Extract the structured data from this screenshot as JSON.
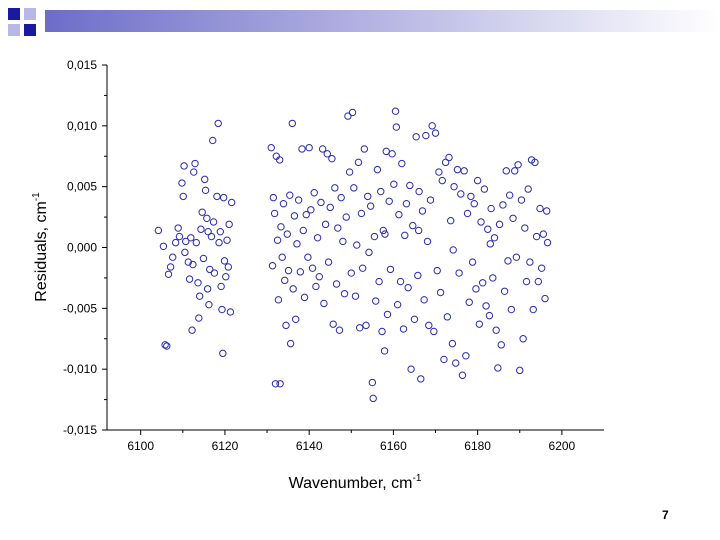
{
  "slide": {
    "page_number": "7",
    "banner_colors": [
      "#1a1a9e",
      "#6d6dc8",
      "#b8b8e6"
    ]
  },
  "chart_data": {
    "type": "scatter",
    "title": "",
    "xlabel": "Wavenumber, cm",
    "xlabel_sup": "-1",
    "ylabel": "Residuals, cm",
    "ylabel_sup": "-1",
    "xlim": [
      6092,
      6210
    ],
    "ylim": [
      -0.015,
      0.015
    ],
    "x_ticks": [
      6100,
      6120,
      6140,
      6160,
      6180,
      6200
    ],
    "x_tick_labels": [
      "6100",
      "6120",
      "6140",
      "6160",
      "6180",
      "6200"
    ],
    "y_ticks": [
      0.015,
      0.01,
      0.005,
      0.0,
      -0.005,
      -0.01,
      -0.015
    ],
    "y_tick_labels": [
      "0,015",
      "0,010",
      "0,005",
      "0,000",
      "-0,005",
      "-0,010",
      "-0,015"
    ],
    "grid": false,
    "marker": "open-circle",
    "marker_color": "#2a2ab0",
    "series": [
      {
        "points": [
          [
            6104.2,
            0.0014
          ],
          [
            6105.4,
            0.0001
          ],
          [
            6105.8,
            -0.008
          ],
          [
            6106.2,
            -0.0081
          ],
          [
            6106.6,
            -0.0022
          ],
          [
            6107.1,
            -0.0016
          ],
          [
            6107.6,
            -0.0008
          ],
          [
            6108.3,
            0.0004
          ],
          [
            6108.9,
            0.0016
          ],
          [
            6109.2,
            0.0009
          ],
          [
            6109.8,
            0.0053
          ],
          [
            6110.3,
            0.0067
          ],
          [
            6110.1,
            0.0042
          ],
          [
            6110.7,
            0.0005
          ],
          [
            6111.3,
            -0.0012
          ],
          [
            6111.6,
            -0.0026
          ],
          [
            6111.9,
            0.0008
          ],
          [
            6112.2,
            -0.0068
          ],
          [
            6112.6,
            0.0062
          ],
          [
            6112.9,
            0.0069
          ],
          [
            6113.2,
            0.0004
          ],
          [
            6113.6,
            -0.0029
          ],
          [
            6113.8,
            -0.0058
          ],
          [
            6114.3,
            0.0015
          ],
          [
            6114.6,
            0.0029
          ],
          [
            6114.9,
            -0.0009
          ],
          [
            6115.2,
            0.0056
          ],
          [
            6115.4,
            0.0047
          ],
          [
            6115.7,
            0.0024
          ],
          [
            6115.9,
            -0.0034
          ],
          [
            6116.2,
            -0.0047
          ],
          [
            6116.4,
            -0.0018
          ],
          [
            6116.8,
            0.0009
          ],
          [
            6117.1,
            0.0088
          ],
          [
            6117.3,
            0.0021
          ],
          [
            6117.5,
            -0.0021
          ],
          [
            6118.1,
            0.0042
          ],
          [
            6118.4,
            0.0102
          ],
          [
            6118.6,
            0.0004
          ],
          [
            6118.9,
            0.0013
          ],
          [
            6119.1,
            -0.0032
          ],
          [
            6119.3,
            -0.0051
          ],
          [
            6119.5,
            -0.0087
          ],
          [
            6119.7,
            0.0041
          ],
          [
            6119.9,
            -0.0011
          ],
          [
            6120.2,
            -0.0024
          ],
          [
            6120.5,
            0.0006
          ],
          [
            6120.8,
            -0.0016
          ],
          [
            6121.0,
            0.0019
          ],
          [
            6121.3,
            -0.0053
          ],
          [
            6121.6,
            0.0037
          ],
          [
            6112.4,
            -0.0014
          ],
          [
            6110.5,
            -0.0004
          ],
          [
            6114.0,
            -0.004
          ],
          [
            6116.0,
            0.0013
          ],
          [
            6131.0,
            0.0082
          ],
          [
            6131.3,
            -0.0015
          ],
          [
            6131.5,
            0.0041
          ],
          [
            6131.8,
            0.0028
          ],
          [
            6132.0,
            -0.0112
          ],
          [
            6132.2,
            0.0075
          ],
          [
            6132.5,
            0.0006
          ],
          [
            6132.7,
            -0.0043
          ],
          [
            6133.0,
            0.0072
          ],
          [
            6133.1,
            -0.0112
          ],
          [
            6133.3,
            0.0017
          ],
          [
            6133.6,
            -0.0008
          ],
          [
            6133.9,
            0.0036
          ],
          [
            6134.2,
            -0.0027
          ],
          [
            6134.5,
            -0.0064
          ],
          [
            6134.8,
            0.0011
          ],
          [
            6135.1,
            -0.0019
          ],
          [
            6135.4,
            0.0043
          ],
          [
            6135.6,
            -0.0079
          ],
          [
            6136.0,
            0.0102
          ],
          [
            6136.2,
            -0.0034
          ],
          [
            6136.5,
            0.0026
          ],
          [
            6136.8,
            -0.0059
          ],
          [
            6137.1,
            0.0003
          ],
          [
            6137.5,
            0.0039
          ],
          [
            6137.9,
            -0.002
          ],
          [
            6138.3,
            0.0081
          ],
          [
            6138.6,
            0.0014
          ],
          [
            6138.9,
            -0.0041
          ],
          [
            6139.3,
            0.0027
          ],
          [
            6139.7,
            -0.0008
          ],
          [
            6140.0,
            0.0082
          ],
          [
            6140.4,
            0.0031
          ],
          [
            6140.8,
            -0.0017
          ],
          [
            6141.2,
            0.0045
          ],
          [
            6141.6,
            -0.0032
          ],
          [
            6142.0,
            0.0008
          ],
          [
            6142.4,
            -0.0024
          ],
          [
            6142.8,
            0.0037
          ],
          [
            6143.2,
            0.0081
          ],
          [
            6143.5,
            -0.0046
          ],
          [
            6143.9,
            0.0019
          ],
          [
            6144.3,
            0.0077
          ],
          [
            6144.6,
            -0.0012
          ],
          [
            6145.0,
            0.0033
          ],
          [
            6145.4,
            0.0073
          ],
          [
            6145.7,
            -0.0063
          ],
          [
            6146.1,
            0.0049
          ],
          [
            6146.5,
            -0.003
          ],
          [
            6146.8,
            0.0016
          ],
          [
            6147.2,
            -0.0068
          ],
          [
            6147.6,
            0.0041
          ],
          [
            6148.0,
            0.0005
          ],
          [
            6148.4,
            -0.0038
          ],
          [
            6148.8,
            0.0025
          ],
          [
            6149.2,
            0.0108
          ],
          [
            6149.6,
            0.0062
          ],
          [
            6150.0,
            -0.0021
          ],
          [
            6150.3,
            0.0111
          ],
          [
            6150.6,
            0.0049
          ],
          [
            6151.0,
            -0.004
          ],
          [
            6151.3,
            0.0002
          ],
          [
            6151.7,
            0.007
          ],
          [
            6152.0,
            -0.0066
          ],
          [
            6152.4,
            0.0028
          ],
          [
            6152.7,
            -0.0017
          ],
          [
            6153.1,
            0.0081
          ],
          [
            6153.5,
            -0.0064
          ],
          [
            6153.9,
            0.0042
          ],
          [
            6154.2,
            -0.0004
          ],
          [
            6154.6,
            0.0034
          ],
          [
            6155.0,
            -0.0111
          ],
          [
            6155.2,
            -0.0124
          ],
          [
            6155.5,
            0.0009
          ],
          [
            6155.8,
            -0.0044
          ],
          [
            6156.2,
            0.0064
          ],
          [
            6156.6,
            -0.0028
          ],
          [
            6157.0,
            0.0046
          ],
          [
            6157.3,
            -0.0069
          ],
          [
            6157.6,
            0.0014
          ],
          [
            6157.9,
            -0.0085
          ],
          [
            6158.3,
            0.0079
          ],
          [
            6158.6,
            -0.0055
          ],
          [
            6159.0,
            0.0038
          ],
          [
            6159.3,
            -0.0018
          ],
          [
            6159.7,
            0.0077
          ],
          [
            6160.1,
            0.0052
          ],
          [
            6160.5,
            0.0112
          ],
          [
            6160.7,
            0.0099
          ],
          [
            6161.0,
            -0.0047
          ],
          [
            6161.3,
            0.0027
          ],
          [
            6161.7,
            -0.0028
          ],
          [
            6162.0,
            0.0069
          ],
          [
            6162.4,
            -0.0067
          ],
          [
            6162.7,
            0.001
          ],
          [
            6163.1,
            0.0036
          ],
          [
            6163.5,
            -0.0033
          ],
          [
            6163.9,
            0.0051
          ],
          [
            6164.2,
            -0.01
          ],
          [
            6164.6,
            0.0018
          ],
          [
            6165.0,
            -0.0059
          ],
          [
            6165.4,
            0.0091
          ],
          [
            6165.8,
            -0.0023
          ],
          [
            6166.1,
            0.0046
          ],
          [
            6166.5,
            -0.0108
          ],
          [
            6166.9,
            0.003
          ],
          [
            6167.3,
            -0.0043
          ],
          [
            6167.7,
            0.0092
          ],
          [
            6168.1,
            0.0005
          ],
          [
            6168.4,
            -0.0064
          ],
          [
            6168.8,
            0.0039
          ],
          [
            6169.2,
            0.01
          ],
          [
            6169.6,
            -0.0069
          ],
          [
            6170.0,
            0.0094
          ],
          [
            6170.4,
            -0.0019
          ],
          [
            6170.8,
            0.0062
          ],
          [
            6171.2,
            -0.0037
          ],
          [
            6171.6,
            0.0055
          ],
          [
            6172.0,
            -0.0092
          ],
          [
            6172.4,
            0.007
          ],
          [
            6172.8,
            -0.0057
          ],
          [
            6173.2,
            0.0074
          ],
          [
            6173.6,
            0.0022
          ],
          [
            6174.0,
            -0.0079
          ],
          [
            6174.4,
            0.005
          ],
          [
            6174.8,
            -0.0095
          ],
          [
            6175.2,
            0.0064
          ],
          [
            6175.6,
            -0.0021
          ],
          [
            6176.0,
            0.0044
          ],
          [
            6176.4,
            -0.0105
          ],
          [
            6176.8,
            0.0063
          ],
          [
            6177.2,
            -0.0089
          ],
          [
            6177.6,
            0.0028
          ],
          [
            6178.0,
            -0.0045
          ],
          [
            6178.4,
            0.0042
          ],
          [
            6178.8,
            -0.0012
          ],
          [
            6179.2,
            0.0036
          ],
          [
            6179.6,
            -0.0034
          ],
          [
            6180.0,
            0.0055
          ],
          [
            6180.4,
            -0.0063
          ],
          [
            6180.8,
            0.0021
          ],
          [
            6181.2,
            -0.0029
          ],
          [
            6181.6,
            0.0048
          ],
          [
            6182.0,
            -0.0048
          ],
          [
            6182.4,
            0.0015
          ],
          [
            6182.8,
            -0.0056
          ],
          [
            6183.2,
            0.0032
          ],
          [
            6183.6,
            -0.0025
          ],
          [
            6184.0,
            0.0008
          ],
          [
            6184.4,
            -0.0068
          ],
          [
            6184.8,
            -0.0099
          ],
          [
            6185.2,
            0.0019
          ],
          [
            6185.6,
            -0.008
          ],
          [
            6186.0,
            0.0035
          ],
          [
            6186.4,
            -0.0036
          ],
          [
            6186.8,
            0.0063
          ],
          [
            6187.2,
            -0.0011
          ],
          [
            6187.6,
            0.0043
          ],
          [
            6188.0,
            -0.0051
          ],
          [
            6188.4,
            0.0024
          ],
          [
            6188.8,
            0.0063
          ],
          [
            6189.2,
            -0.0008
          ],
          [
            6189.6,
            0.0068
          ],
          [
            6190.0,
            -0.0101
          ],
          [
            6190.4,
            0.0039
          ],
          [
            6190.8,
            -0.0075
          ],
          [
            6191.2,
            0.0016
          ],
          [
            6191.6,
            -0.0028
          ],
          [
            6192.0,
            0.0048
          ],
          [
            6192.4,
            -0.0012
          ],
          [
            6192.8,
            0.0072
          ],
          [
            6193.2,
            -0.0051
          ],
          [
            6193.6,
            0.007
          ],
          [
            6194.0,
            0.0009
          ],
          [
            6194.4,
            -0.0028
          ],
          [
            6194.8,
            0.0032
          ],
          [
            6195.2,
            -0.0017
          ],
          [
            6195.6,
            0.0011
          ],
          [
            6196.0,
            -0.0042
          ],
          [
            6196.4,
            0.003
          ],
          [
            6196.6,
            0.0004
          ],
          [
            6158.0,
            0.0011
          ],
          [
            6166.0,
            0.0014
          ],
          [
            6174.2,
            -0.0002
          ],
          [
            6183.0,
            0.0003
          ]
        ]
      }
    ]
  }
}
